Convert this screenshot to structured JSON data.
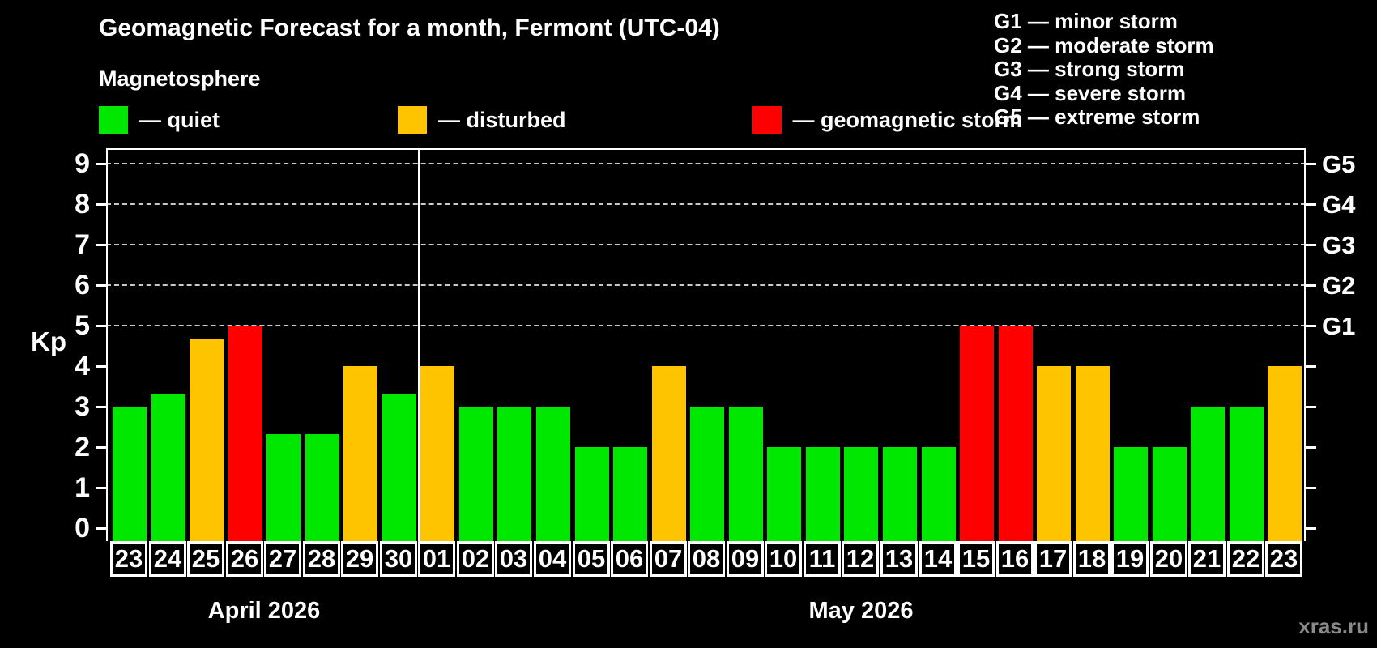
{
  "header": {
    "title": "Geomagnetic Forecast for a month, Fermont (UTC-04)",
    "subtitle": "Magnetosphere"
  },
  "legend": {
    "items": [
      {
        "key": "quiet",
        "label": "— quiet",
        "color": "#00e800"
      },
      {
        "key": "disturbed",
        "label": "— disturbed",
        "color": "#ffc400"
      },
      {
        "key": "storm",
        "label": "— geomagnetic storm",
        "color": "#ff0000"
      }
    ]
  },
  "g_legend": {
    "lines": [
      "G1 — minor storm",
      "G2 — moderate storm",
      "G3 — strong storm",
      "G4 — severe storm",
      "G5 — extreme storm"
    ]
  },
  "watermark": "xras.ru",
  "chart_data": {
    "type": "bar",
    "title": "Geomagnetic Forecast for a month, Fermont (UTC-04)",
    "xlabel": "",
    "ylabel": "Kp",
    "ylim": [
      0,
      9.5
    ],
    "grid": "dashed horizontal at G-storm levels only",
    "legend_position": "top",
    "y_ticks": [
      0,
      1,
      2,
      3,
      4,
      5,
      6,
      7,
      8,
      9
    ],
    "g_levels": [
      {
        "kp": 5,
        "label": "G1"
      },
      {
        "kp": 6,
        "label": "G2"
      },
      {
        "kp": 7,
        "label": "G3"
      },
      {
        "kp": 8,
        "label": "G4"
      },
      {
        "kp": 9,
        "label": "G5"
      }
    ],
    "status_colors": {
      "quiet": "#00e800",
      "disturbed": "#ffc400",
      "storm": "#ff0000"
    },
    "months": [
      {
        "label": "April 2026",
        "days": 8
      },
      {
        "label": "May 2026",
        "days": 23
      }
    ],
    "bars": [
      {
        "month": "April",
        "day": "23",
        "kp": 3,
        "status": "quiet"
      },
      {
        "month": "April",
        "day": "24",
        "kp": 3.33,
        "status": "quiet"
      },
      {
        "month": "April",
        "day": "25",
        "kp": 4.67,
        "status": "disturbed"
      },
      {
        "month": "April",
        "day": "26",
        "kp": 5,
        "status": "storm"
      },
      {
        "month": "April",
        "day": "27",
        "kp": 2.33,
        "status": "quiet"
      },
      {
        "month": "April",
        "day": "28",
        "kp": 2.33,
        "status": "quiet"
      },
      {
        "month": "April",
        "day": "29",
        "kp": 4,
        "status": "disturbed"
      },
      {
        "month": "April",
        "day": "30",
        "kp": 3.33,
        "status": "quiet"
      },
      {
        "month": "May",
        "day": "01",
        "kp": 4,
        "status": "disturbed"
      },
      {
        "month": "May",
        "day": "02",
        "kp": 3,
        "status": "quiet"
      },
      {
        "month": "May",
        "day": "03",
        "kp": 3,
        "status": "quiet"
      },
      {
        "month": "May",
        "day": "04",
        "kp": 3,
        "status": "quiet"
      },
      {
        "month": "May",
        "day": "05",
        "kp": 2,
        "status": "quiet"
      },
      {
        "month": "May",
        "day": "06",
        "kp": 2,
        "status": "quiet"
      },
      {
        "month": "May",
        "day": "07",
        "kp": 4,
        "status": "disturbed"
      },
      {
        "month": "May",
        "day": "08",
        "kp": 3,
        "status": "quiet"
      },
      {
        "month": "May",
        "day": "09",
        "kp": 3,
        "status": "quiet"
      },
      {
        "month": "May",
        "day": "10",
        "kp": 2,
        "status": "quiet"
      },
      {
        "month": "May",
        "day": "11",
        "kp": 2,
        "status": "quiet"
      },
      {
        "month": "May",
        "day": "12",
        "kp": 2,
        "status": "quiet"
      },
      {
        "month": "May",
        "day": "13",
        "kp": 2,
        "status": "quiet"
      },
      {
        "month": "May",
        "day": "14",
        "kp": 2,
        "status": "quiet"
      },
      {
        "month": "May",
        "day": "15",
        "kp": 5,
        "status": "storm"
      },
      {
        "month": "May",
        "day": "16",
        "kp": 5,
        "status": "storm"
      },
      {
        "month": "May",
        "day": "17",
        "kp": 4,
        "status": "disturbed"
      },
      {
        "month": "May",
        "day": "18",
        "kp": 4,
        "status": "disturbed"
      },
      {
        "month": "May",
        "day": "19",
        "kp": 2,
        "status": "quiet"
      },
      {
        "month": "May",
        "day": "20",
        "kp": 2,
        "status": "quiet"
      },
      {
        "month": "May",
        "day": "21",
        "kp": 3,
        "status": "quiet"
      },
      {
        "month": "May",
        "day": "22",
        "kp": 3,
        "status": "quiet"
      },
      {
        "month": "May",
        "day": "23",
        "kp": 4,
        "status": "disturbed"
      }
    ]
  }
}
